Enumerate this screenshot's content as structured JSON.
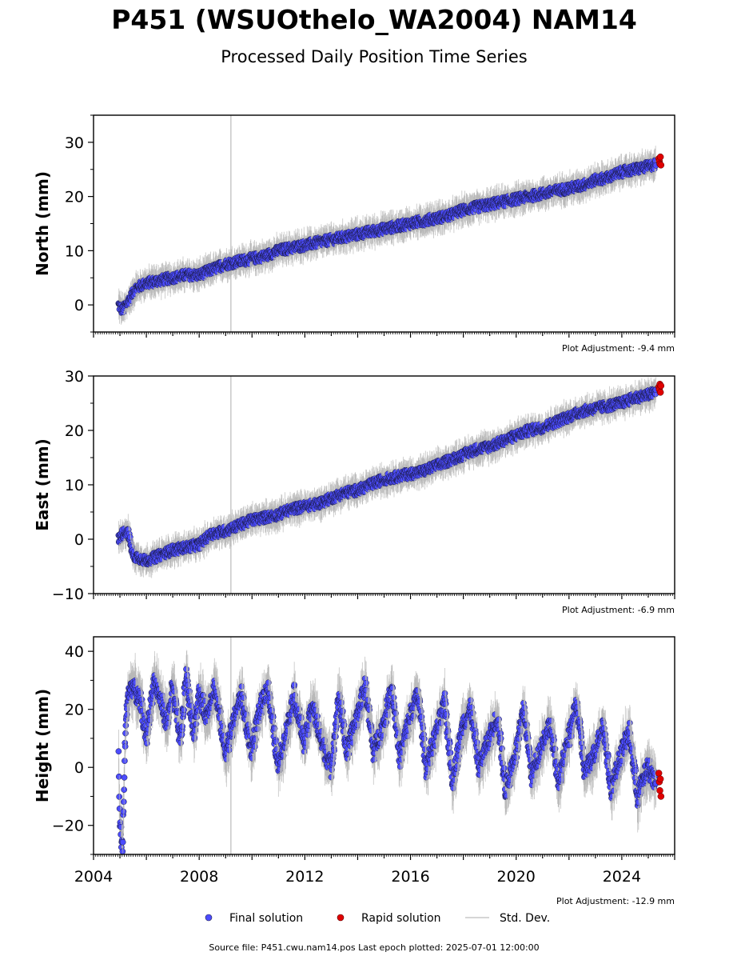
{
  "figure": {
    "title": "P451 (WSUOthelo_WA2004) NAM14",
    "subtitle": "Processed Daily Position Time Series",
    "source_note": "Source file: P451.cwu.nam14.pos  Last epoch plotted: 2025-07-01 12:00:00"
  },
  "legend": {
    "final": "Final solution",
    "rapid": "Rapid solution",
    "std": "Std. Dev."
  },
  "colors": {
    "final": "#4c4cff",
    "rapid": "#e00000",
    "std_dev": "#b4b4b4",
    "event_line": "#c8c8c8"
  },
  "chart_data": [
    {
      "type": "scatter",
      "ylabel": "North (mm)",
      "adjustment": "Plot Adjustment: -9.4 mm",
      "xlim": [
        2004,
        2026
      ],
      "ylim": [
        -5,
        35
      ],
      "yticks": [
        0,
        10,
        20,
        30
      ],
      "yticklabels": [
        "0",
        "10",
        "20",
        "30"
      ],
      "event_line_x": 2009.2,
      "series": [
        {
          "kind": "final",
          "x": [
            2004.95,
            2005.1,
            2005.3,
            2005.6,
            2006.0,
            2006.5,
            2007.0,
            2007.5,
            2008.0,
            2008.5,
            2009.0,
            2009.5,
            2010.0,
            2010.5,
            2011.0,
            2011.5,
            2012.0,
            2012.5,
            2013.0,
            2013.5,
            2014.0,
            2014.5,
            2015.0,
            2015.5,
            2016.0,
            2016.5,
            2017.0,
            2017.5,
            2018.0,
            2018.5,
            2019.0,
            2019.5,
            2020.0,
            2020.5,
            2021.0,
            2021.5,
            2022.0,
            2022.5,
            2023.0,
            2023.5,
            2024.0,
            2024.5,
            2025.0,
            2025.3
          ],
          "y": [
            0,
            -1,
            0.5,
            3,
            4,
            4.5,
            5,
            5.5,
            5.5,
            6.5,
            7.5,
            8,
            8.5,
            9,
            10,
            10.5,
            11,
            11.5,
            12,
            12.5,
            13,
            13.5,
            14,
            14.5,
            15,
            15.5,
            16,
            16.5,
            17.5,
            18,
            18.5,
            19,
            19.5,
            20,
            20.5,
            21,
            21.5,
            22,
            23,
            23.5,
            24.5,
            25,
            25.5,
            26
          ]
        },
        {
          "kind": "rapid",
          "x": [
            2025.4,
            2025.42,
            2025.44,
            2025.46,
            2025.48
          ],
          "y": [
            27,
            26.5,
            26,
            27.3,
            25.8
          ]
        }
      ]
    },
    {
      "type": "scatter",
      "ylabel": "East (mm)",
      "adjustment": "Plot Adjustment: -6.9 mm",
      "xlim": [
        2004,
        2026
      ],
      "ylim": [
        -10,
        30
      ],
      "yticks": [
        -10,
        0,
        10,
        20,
        30
      ],
      "yticklabels": [
        "−10",
        "0",
        "10",
        "20",
        "30"
      ],
      "event_line_x": 2009.2,
      "series": [
        {
          "kind": "final",
          "x": [
            2004.95,
            2005.1,
            2005.3,
            2005.5,
            2005.8,
            2006.0,
            2006.5,
            2007.0,
            2007.5,
            2008.0,
            2008.5,
            2009.0,
            2009.5,
            2010.0,
            2010.5,
            2011.0,
            2011.5,
            2012.0,
            2012.5,
            2013.0,
            2013.5,
            2014.0,
            2014.5,
            2015.0,
            2015.5,
            2016.0,
            2016.5,
            2017.0,
            2017.5,
            2018.0,
            2018.5,
            2019.0,
            2019.5,
            2020.0,
            2020.5,
            2021.0,
            2021.5,
            2022.0,
            2022.5,
            2023.0,
            2023.5,
            2024.0,
            2024.5,
            2025.0,
            2025.3
          ],
          "y": [
            0,
            1,
            1.5,
            -3,
            -3.5,
            -4,
            -3,
            -2,
            -1.5,
            -1,
            1,
            1.5,
            2.5,
            3.5,
            4,
            4.5,
            5.5,
            6,
            6.5,
            7.5,
            8.5,
            9,
            10,
            11,
            11.5,
            12,
            12.5,
            13.5,
            14.5,
            15.5,
            16.5,
            17,
            18,
            19,
            20,
            20.5,
            21.5,
            22.5,
            23.5,
            24,
            24.5,
            25,
            26,
            26.5,
            27
          ]
        },
        {
          "kind": "rapid",
          "x": [
            2025.4,
            2025.42,
            2025.44,
            2025.46,
            2025.48
          ],
          "y": [
            28,
            27.5,
            28.5,
            27,
            28.2
          ]
        }
      ]
    },
    {
      "type": "scatter",
      "ylabel": "Height (mm)",
      "adjustment": "Plot Adjustment: -12.9 mm",
      "xlim": [
        2004,
        2026
      ],
      "ylim": [
        -30,
        45
      ],
      "yticks": [
        -20,
        0,
        20,
        40
      ],
      "yticklabels": [
        "−20",
        "0",
        "20",
        "40"
      ],
      "xticks": [
        2004,
        2008,
        2012,
        2016,
        2020,
        2024
      ],
      "xticklabels": [
        "2004",
        "2008",
        "2012",
        "2016",
        "2020",
        "2024"
      ],
      "event_line_x": 2009.2,
      "series": [
        {
          "kind": "final",
          "x": [
            2004.95,
            2005.0,
            2005.1,
            2005.2,
            2005.3,
            2005.5,
            2005.8,
            2006.0,
            2006.3,
            2006.5,
            2006.8,
            2007.0,
            2007.3,
            2007.5,
            2007.8,
            2008.0,
            2008.3,
            2008.6,
            2009.0,
            2009.3,
            2009.6,
            2010.0,
            2010.3,
            2010.6,
            2011.0,
            2011.3,
            2011.6,
            2012.0,
            2012.3,
            2012.6,
            2013.0,
            2013.3,
            2013.6,
            2014.0,
            2014.3,
            2014.6,
            2015.0,
            2015.3,
            2015.6,
            2016.0,
            2016.3,
            2016.6,
            2017.0,
            2017.3,
            2017.6,
            2018.0,
            2018.3,
            2018.6,
            2019.0,
            2019.3,
            2019.6,
            2020.0,
            2020.3,
            2020.6,
            2021.0,
            2021.3,
            2021.6,
            2022.0,
            2022.3,
            2022.6,
            2023.0,
            2023.3,
            2023.6,
            2024.0,
            2024.3,
            2024.6,
            2025.0,
            2025.3
          ],
          "y": [
            5,
            -20,
            -28,
            10,
            25,
            28,
            22,
            10,
            30,
            25,
            15,
            28,
            8,
            32,
            12,
            25,
            18,
            28,
            5,
            15,
            25,
            5,
            20,
            28,
            0,
            12,
            25,
            8,
            22,
            10,
            0,
            25,
            5,
            18,
            28,
            5,
            15,
            28,
            3,
            18,
            25,
            0,
            12,
            22,
            -5,
            15,
            20,
            0,
            10,
            18,
            -8,
            5,
            20,
            -3,
            8,
            15,
            -5,
            10,
            22,
            -2,
            5,
            15,
            -8,
            5,
            12,
            -10,
            0,
            -5
          ]
        },
        {
          "kind": "rapid",
          "x": [
            2025.4,
            2025.42,
            2025.44,
            2025.46,
            2025.48
          ],
          "y": [
            -2,
            -5,
            -8,
            -4,
            -10
          ]
        }
      ]
    }
  ]
}
